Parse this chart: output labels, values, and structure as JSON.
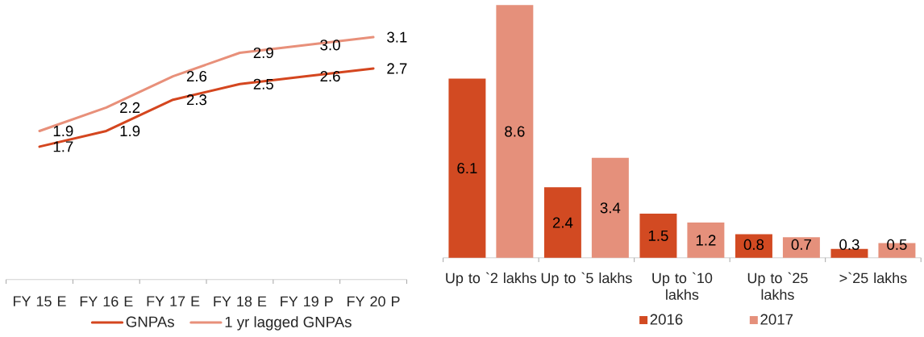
{
  "chart_data": [
    {
      "type": "line",
      "categories": [
        "FY 15 E",
        "FY 16 E",
        "FY 17 E",
        "FY 18 E",
        "FY 19 P",
        "FY 20 P"
      ],
      "series": [
        {
          "name": "GNPAs",
          "color": "#d4461f",
          "values": [
            1.7,
            1.9,
            2.3,
            2.5,
            2.6,
            2.7
          ],
          "value_labels": [
            "1.7",
            "1.9",
            "2.3",
            "2.5",
            "2.6",
            "2.7"
          ]
        },
        {
          "name": "1 yr lagged GNPAs",
          "color": "#e8907a",
          "values": [
            1.9,
            2.2,
            2.6,
            2.9,
            3.0,
            3.1
          ],
          "value_labels": [
            "1.9",
            "2.2",
            "2.6",
            "2.9",
            "3.0",
            "3.1"
          ]
        }
      ],
      "legend": "bottom",
      "tick_labels": "x"
    },
    {
      "type": "bar",
      "categories": [
        "Up to `2 lakhs",
        "Up to `5 lakhs",
        "Up to `10 lakhs",
        "Up to `25 lakhs",
        ">`25 lakhs"
      ],
      "series": [
        {
          "name": "2016",
          "color": "#d24a22",
          "values": [
            6.1,
            2.4,
            1.5,
            0.8,
            0.3
          ]
        },
        {
          "name": "2017",
          "color": "#e5907b",
          "values": [
            8.6,
            3.4,
            1.2,
            0.7,
            0.5
          ]
        }
      ],
      "data_labels": true,
      "legend": "bottom",
      "tick_labels": "x"
    }
  ]
}
